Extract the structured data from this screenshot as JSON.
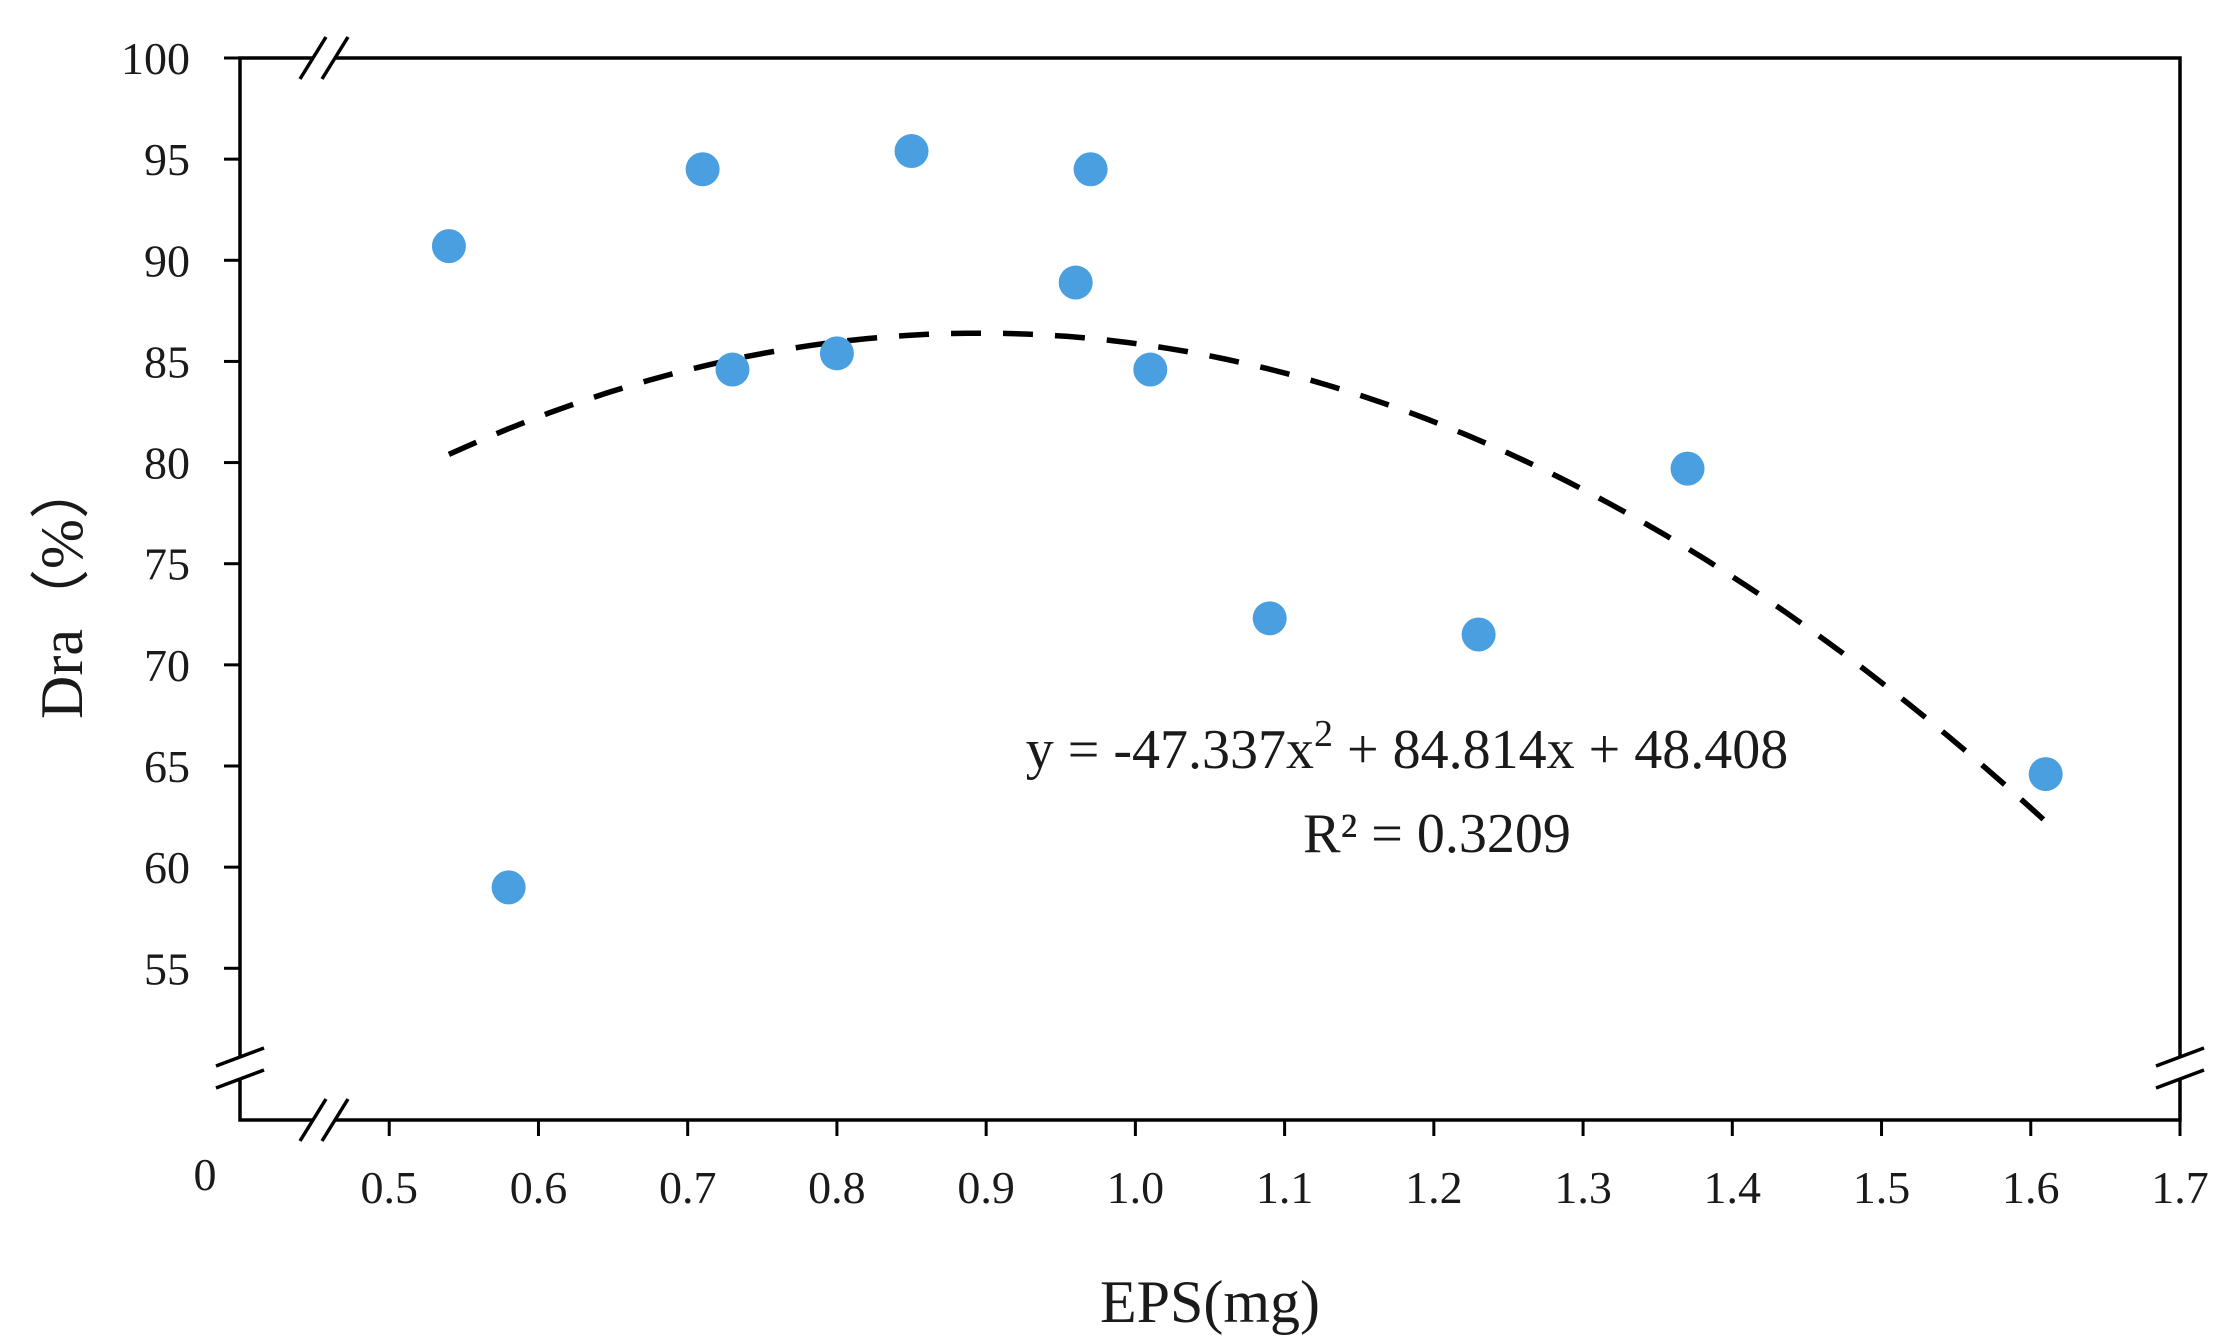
{
  "chart_data": {
    "type": "scatter",
    "title": "",
    "xlabel": "EPS(mg)",
    "ylabel": "Dra（%）",
    "xlim": [
      0.4,
      1.7
    ],
    "ylim": [
      47.5,
      100
    ],
    "x_ticks": [
      "0.5",
      "0.6",
      "0.7",
      "0.8",
      "0.9",
      "1.0",
      "1.1",
      "1.2",
      "1.3",
      "1.4",
      "1.5",
      "1.6",
      "1.7"
    ],
    "x_tick_values": [
      0.5,
      0.6,
      0.7,
      0.8,
      0.9,
      1.0,
      1.1,
      1.2,
      1.3,
      1.4,
      1.5,
      1.6,
      1.7
    ],
    "y_ticks": [
      "100",
      "95",
      "90",
      "85",
      "80",
      "75",
      "70",
      "65",
      "60",
      "55"
    ],
    "y_tick_values": [
      100,
      95,
      90,
      85,
      80,
      75,
      70,
      65,
      60,
      55
    ],
    "origin_label": "0",
    "axis_breaks": true,
    "grid": false,
    "series": [
      {
        "name": "Dra",
        "color": "#4a9fe0",
        "points": [
          {
            "x": 0.54,
            "y": 90.7
          },
          {
            "x": 0.58,
            "y": 59.0
          },
          {
            "x": 0.71,
            "y": 94.5
          },
          {
            "x": 0.73,
            "y": 84.6
          },
          {
            "x": 0.8,
            "y": 85.4
          },
          {
            "x": 0.85,
            "y": 95.4
          },
          {
            "x": 0.96,
            "y": 88.9
          },
          {
            "x": 0.97,
            "y": 94.5
          },
          {
            "x": 1.01,
            "y": 84.6
          },
          {
            "x": 1.09,
            "y": 72.3
          },
          {
            "x": 1.23,
            "y": 71.5
          },
          {
            "x": 1.37,
            "y": 79.7
          },
          {
            "x": 1.61,
            "y": 64.6
          }
        ]
      }
    ],
    "trendline": {
      "type": "polynomial",
      "order": 2,
      "coefficients": {
        "a": -47.337,
        "b": 84.814,
        "c": 48.408
      },
      "x_range": [
        0.54,
        1.61
      ],
      "style": "dashed",
      "color": "#000000"
    },
    "annotations": {
      "equation_prefix": "y = -47.337x",
      "equation_exponent": "2",
      "equation_suffix": " + 84.814x + 48.408",
      "r_squared": "R² = 0.3209"
    }
  }
}
